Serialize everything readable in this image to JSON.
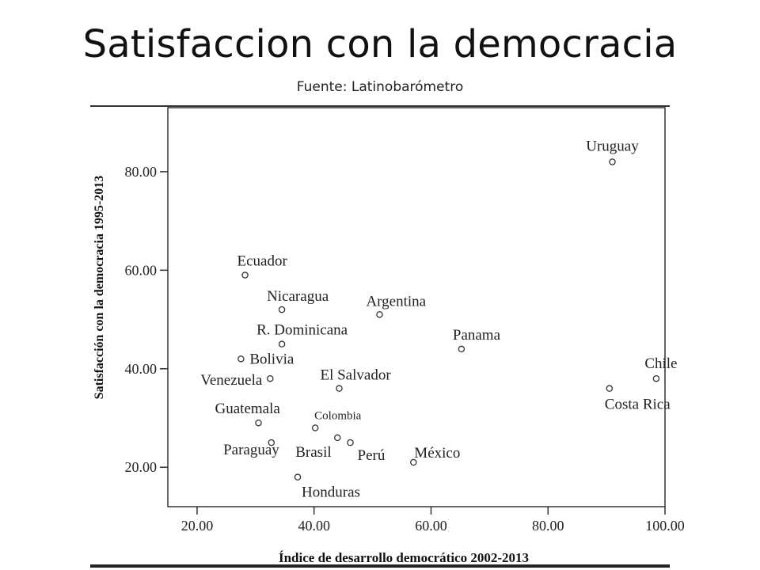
{
  "slide": {
    "title": "Satisfaccion con la democracia",
    "subtitle": "Fuente: Latinobarómetro"
  },
  "chart_data": {
    "type": "scatter",
    "xlabel": "Índice de desarrollo democrático 2002-2013",
    "ylabel": "Satisfacción con la democracia 1995-2013",
    "xlim": [
      15,
      100
    ],
    "ylim": [
      12,
      93
    ],
    "x_ticks": [
      20,
      40,
      60,
      80,
      100
    ],
    "x_tick_labels": [
      "20.00",
      "40.00",
      "60.00",
      "80.00",
      "100.00"
    ],
    "y_ticks": [
      20,
      40,
      60,
      80
    ],
    "y_tick_labels": [
      "20.00",
      "40.00",
      "60.00",
      "80.00"
    ],
    "grid": false,
    "points": [
      {
        "label": "Uruguay",
        "x": 91.0,
        "y": 82.0
      },
      {
        "label": "Ecuador",
        "x": 28.2,
        "y": 59.0
      },
      {
        "label": "Nicaragua",
        "x": 34.5,
        "y": 52.0
      },
      {
        "label": "Argentina",
        "x": 51.2,
        "y": 51.0
      },
      {
        "label": "R. Dominicana",
        "x": 34.5,
        "y": 45.0
      },
      {
        "label": "Panama",
        "x": 65.2,
        "y": 44.0
      },
      {
        "label": "Bolivia",
        "x": 27.5,
        "y": 42.0
      },
      {
        "label": "Chile",
        "x": 98.5,
        "y": 38.0
      },
      {
        "label": "Venezuela",
        "x": 32.5,
        "y": 38.0
      },
      {
        "label": "El Salvador",
        "x": 44.3,
        "y": 36.0
      },
      {
        "label": "Costa Rica",
        "x": 90.5,
        "y": 36.0
      },
      {
        "label": "Guatemala",
        "x": 30.5,
        "y": 29.0
      },
      {
        "label": "Colombia",
        "x": 40.2,
        "y": 28.0
      },
      {
        "label": "Paraguay",
        "x": 32.7,
        "y": 25.0
      },
      {
        "label": "Brasil",
        "x": 44.0,
        "y": 26.0
      },
      {
        "label": "Perú",
        "x": 46.2,
        "y": 25.0
      },
      {
        "label": "México",
        "x": 57.0,
        "y": 21.0
      },
      {
        "label": "Honduras",
        "x": 37.2,
        "y": 18.0
      }
    ]
  }
}
